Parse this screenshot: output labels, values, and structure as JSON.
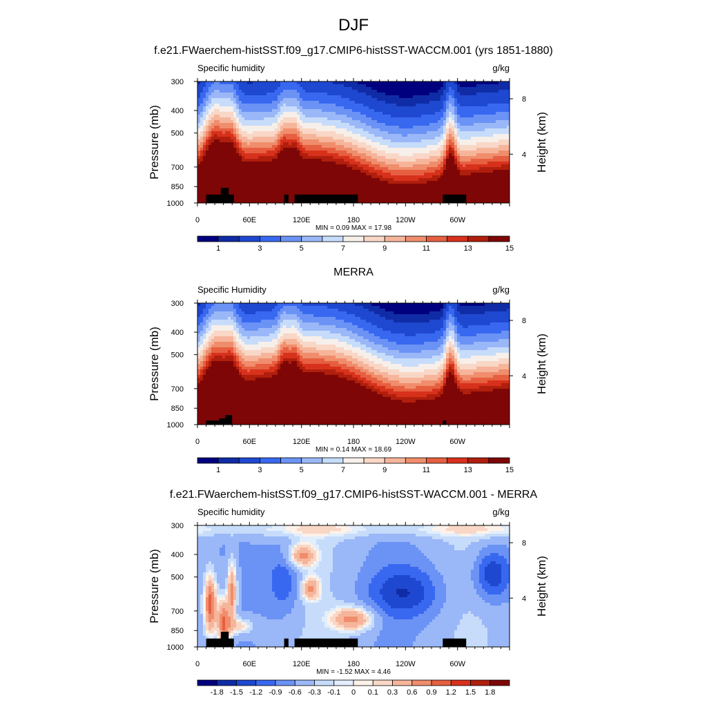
{
  "figure": {
    "title": "DJF"
  },
  "colors": {
    "abs_levels": [
      "#00007f",
      "#0f2ca6",
      "#1f48d0",
      "#3868f0",
      "#6b92f5",
      "#9ab7f8",
      "#c6dcfa",
      "#f7efea",
      "#f9d7c6",
      "#f6b59b",
      "#f08d6c",
      "#e65f40",
      "#d7311c",
      "#b01f0d",
      "#7e0606"
    ],
    "diff_levels": [
      "#00007f",
      "#0f2ca6",
      "#1f48d0",
      "#3868f0",
      "#6b92f5",
      "#9ab7f8",
      "#c6dcfa",
      "#e2eefc",
      "#fdf2e9",
      "#f9d7c6",
      "#f6b59b",
      "#f08d6c",
      "#e65f40",
      "#d7311c",
      "#b01f0d",
      "#7e0606"
    ],
    "topography": "#000000"
  },
  "chart_data": [
    {
      "type": "heatmap",
      "title": "f.e21.FWaerchem-histSST.f09_g17.CMIP6-histSST-WACCM.001 (yrs 1851-1880)",
      "left_label": "Specific humidity",
      "right_label": "g/kg",
      "ylabel": "Pressure (mb)",
      "ylabel_right": "Height (km)",
      "x_ticks": [
        "0",
        "60E",
        "120E",
        "180",
        "120W",
        "60W"
      ],
      "x_tick_values": [
        0,
        60,
        120,
        180,
        240,
        300
      ],
      "xlim": [
        0,
        360
      ],
      "y_ticks": [
        "300",
        "400",
        "500",
        "700",
        "850",
        "1000"
      ],
      "y_tick_values": [
        300,
        400,
        500,
        700,
        850,
        1000
      ],
      "ylim": [
        1000,
        300
      ],
      "y_scale": "log",
      "right_ticks": [
        "8",
        "4"
      ],
      "right_tick_values": [
        8,
        4
      ],
      "min_max_text": "MIN =   0.09  MAX =   17.98",
      "min": 0.09,
      "max": 17.98,
      "colorbar_labels": [
        "1",
        "3",
        "5",
        "7",
        "9",
        "11",
        "13",
        "15"
      ],
      "colorbar_label_positions": [
        1,
        3,
        5,
        7,
        9,
        11,
        13,
        15
      ],
      "levels": [
        0.5,
        1,
        2,
        3,
        4,
        5,
        6,
        7,
        8,
        9,
        10,
        11,
        12,
        13,
        14,
        15
      ],
      "topography_mask": [
        {
          "lon_from": 10,
          "lon_to": 42,
          "p_top": 920
        },
        {
          "lon_from": 27,
          "lon_to": 36,
          "p_top": 860
        },
        {
          "lon_from": 100,
          "lon_to": 105,
          "p_top": 920
        },
        {
          "lon_from": 112,
          "lon_to": 185,
          "p_top": 920
        },
        {
          "lon_from": 283,
          "lon_to": 310,
          "p_top": 920
        }
      ]
    },
    {
      "type": "heatmap",
      "title": "MERRA",
      "left_label": "Specific Humidity",
      "right_label": "g/kg",
      "ylabel": "Pressure (mb)",
      "ylabel_right": "Height (km)",
      "x_ticks": [
        "0",
        "60E",
        "120E",
        "180",
        "120W",
        "60W"
      ],
      "x_tick_values": [
        0,
        60,
        120,
        180,
        240,
        300
      ],
      "xlim": [
        0,
        360
      ],
      "y_ticks": [
        "300",
        "400",
        "500",
        "700",
        "850",
        "1000"
      ],
      "y_tick_values": [
        300,
        400,
        500,
        700,
        850,
        1000
      ],
      "ylim": [
        1000,
        300
      ],
      "y_scale": "log",
      "right_ticks": [
        "8",
        "4"
      ],
      "right_tick_values": [
        8,
        4
      ],
      "min_max_text": "MIN =   0.14  MAX =   18.69",
      "min": 0.14,
      "max": 18.69,
      "colorbar_labels": [
        "1",
        "3",
        "5",
        "7",
        "9",
        "11",
        "13",
        "15"
      ],
      "colorbar_label_positions": [
        1,
        3,
        5,
        7,
        9,
        11,
        13,
        15
      ],
      "levels": [
        0.5,
        1,
        2,
        3,
        4,
        5,
        6,
        7,
        8,
        9,
        10,
        11,
        12,
        13,
        14,
        15
      ],
      "topography_mask": [
        {
          "lon_from": 10,
          "lon_to": 25,
          "p_top": 960
        },
        {
          "lon_from": 25,
          "lon_to": 32,
          "p_top": 940
        },
        {
          "lon_from": 32,
          "lon_to": 40,
          "p_top": 910
        },
        {
          "lon_from": 283,
          "lon_to": 287,
          "p_top": 960
        }
      ]
    },
    {
      "type": "heatmap",
      "title": "f.e21.FWaerchem-histSST.f09_g17.CMIP6-histSST-WACCM.001 - MERRA",
      "left_label": "Specific humidity",
      "right_label": "g/kg",
      "ylabel": "Pressure (mb)",
      "ylabel_right": "Height (km)",
      "x_ticks": [
        "0",
        "60E",
        "120E",
        "180",
        "120W",
        "60W"
      ],
      "x_tick_values": [
        0,
        60,
        120,
        180,
        240,
        300
      ],
      "xlim": [
        0,
        360
      ],
      "y_ticks": [
        "300",
        "400",
        "500",
        "700",
        "850",
        "1000"
      ],
      "y_tick_values": [
        300,
        400,
        500,
        700,
        850,
        1000
      ],
      "ylim": [
        1000,
        300
      ],
      "y_scale": "log",
      "right_ticks": [
        "8",
        "4"
      ],
      "right_tick_values": [
        8,
        4
      ],
      "min_max_text": "MIN =  -1.52  MAX =   4.46",
      "min": -1.52,
      "max": 4.46,
      "colorbar_labels": [
        "-1.8",
        "-1.5",
        "-1.2",
        "-0.9",
        "-0.6",
        "-0.3",
        "-0.1",
        "0",
        "0.1",
        "0.3",
        "0.6",
        "0.9",
        "1.2",
        "1.5",
        "1.8"
      ],
      "colorbar_label_positions": [
        1,
        2,
        3,
        4,
        5,
        6,
        7,
        8,
        9,
        10,
        11,
        12,
        13,
        14,
        15
      ],
      "levels": [
        -1.8,
        -1.5,
        -1.2,
        -0.9,
        -0.6,
        -0.3,
        -0.1,
        0,
        0.1,
        0.3,
        0.6,
        0.9,
        1.2,
        1.5,
        1.8
      ],
      "topography_mask": [
        {
          "lon_from": 10,
          "lon_to": 42,
          "p_top": 920
        },
        {
          "lon_from": 27,
          "lon_to": 36,
          "p_top": 860
        },
        {
          "lon_from": 100,
          "lon_to": 105,
          "p_top": 920
        },
        {
          "lon_from": 112,
          "lon_to": 185,
          "p_top": 920
        },
        {
          "lon_from": 283,
          "lon_to": 310,
          "p_top": 920
        }
      ]
    }
  ]
}
